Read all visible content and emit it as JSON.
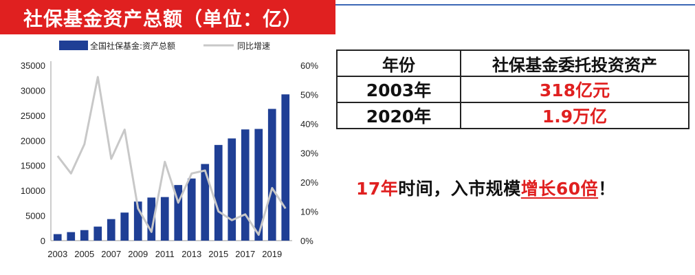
{
  "banner": {
    "title": "社保基金资产总额（单位：亿）"
  },
  "chart_data": {
    "type": "bar+line",
    "years": [
      2003,
      2004,
      2005,
      2006,
      2007,
      2008,
      2009,
      2010,
      2011,
      2012,
      2013,
      2014,
      2015,
      2016,
      2017,
      2018,
      2019,
      2020
    ],
    "x_tick_labels": [
      "2003",
      "2005",
      "2007",
      "2009",
      "2011",
      "2013",
      "2015",
      "2017",
      "2019"
    ],
    "series": [
      {
        "name": "全国社保基金:资产总额",
        "type": "bar",
        "axis": "left",
        "color": "#1f3f95",
        "values": [
          1300,
          1700,
          2100,
          2800,
          4300,
          5600,
          7800,
          8600,
          8700,
          11100,
          12400,
          15300,
          19100,
          20400,
          22200,
          22300,
          26300,
          29200
        ]
      },
      {
        "name": "同比增速",
        "type": "line",
        "axis": "right",
        "color": "#c8c8c8",
        "values": [
          29,
          23,
          33,
          56,
          28,
          38,
          11,
          3,
          27,
          13,
          23,
          24,
          10,
          7,
          9,
          2,
          18,
          11
        ]
      }
    ],
    "left_axis": {
      "min": 0,
      "max": 35000,
      "ticks": [
        "0",
        "5000",
        "10000",
        "15000",
        "20000",
        "25000",
        "30000",
        "35000"
      ]
    },
    "right_axis": {
      "min": 0,
      "max": 60,
      "ticks": [
        "0%",
        "10%",
        "20%",
        "30%",
        "40%",
        "50%",
        "60%"
      ]
    },
    "legend_position": "top"
  },
  "table": {
    "header": [
      "年份",
      "社保基金委托投资资产"
    ],
    "rows": [
      {
        "year": "2003年",
        "value": "318亿元"
      },
      {
        "year": "2020年",
        "value": "1.9万亿"
      }
    ]
  },
  "headline": {
    "part1": "17年",
    "part2": "时间，入市规模",
    "part3": "增长60倍",
    "part4": "！"
  },
  "colors": {
    "accent": "#e02020",
    "bar": "#1f3f95",
    "line": "#c8c8c8"
  }
}
